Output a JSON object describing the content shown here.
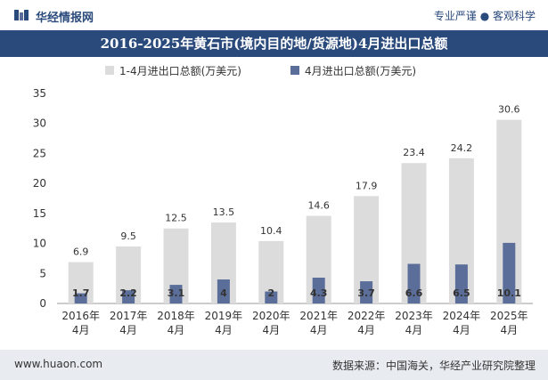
{
  "header": {
    "brand": "华经情报网",
    "tagline": "专业严谨 ● 客观科学"
  },
  "footer": {
    "url": "www.huaon.com",
    "source": "数据来源：中国海关，华经产业研究院整理"
  },
  "colors": {
    "series1": "#dcdcdc",
    "series2": "#5b6e9a",
    "title_bg": "#2a4a7c"
  },
  "chart_data": {
    "type": "bar",
    "title": "2016-2025年黄石市(境内目的地/货源地)4月进出口总额",
    "categories": [
      "2016年\n4月",
      "2017年\n4月",
      "2018年\n4月",
      "2019年\n4月",
      "2020年\n4月",
      "2021年\n4月",
      "2022年\n4月",
      "2023年\n4月",
      "2024年\n4月",
      "2025年\n4月"
    ],
    "series": [
      {
        "name": "1-4月进出口总额(万美元)",
        "values": [
          6.9,
          9.5,
          12.5,
          13.5,
          10.4,
          14.6,
          17.9,
          23.4,
          24.2,
          30.6
        ],
        "labels": [
          "6.9",
          "9.5",
          "12.5",
          "13.5",
          "10.4",
          "14.6",
          "17.9",
          "23.4",
          "24.2",
          "30.6"
        ]
      },
      {
        "name": "4月进出口总额(万美元)",
        "values": [
          1.7,
          2.2,
          3.1,
          4,
          2,
          4.3,
          3.7,
          6.6,
          6.5,
          10.1
        ],
        "labels": [
          "1.7",
          "2.2",
          "3.1",
          "4",
          "2",
          "4.3",
          "3.7",
          "6.6",
          "6.5",
          "10.1"
        ]
      }
    ],
    "ylim": [
      0,
      35
    ],
    "yticks": [
      "0",
      "5",
      "10",
      "15",
      "20",
      "25",
      "30",
      "35"
    ],
    "grid": false,
    "legend": "top-center"
  }
}
